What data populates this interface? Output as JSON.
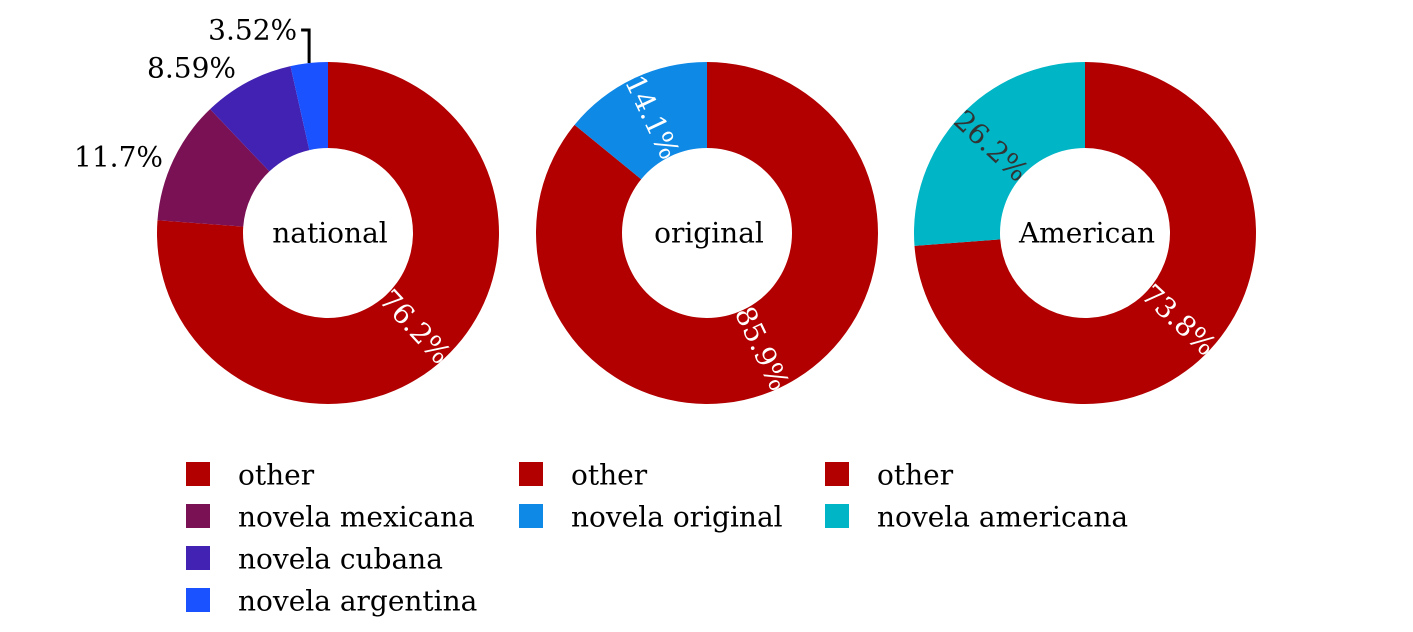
{
  "chart_data": [
    {
      "type": "pie",
      "center_label": "national",
      "categories": [
        "other",
        "novela mexicana",
        "novela cubana",
        "novela argentina"
      ],
      "values": [
        76.2,
        11.7,
        8.59,
        3.52
      ],
      "value_labels": [
        "76.2%",
        "11.7%",
        "8.59%",
        "3.52%"
      ],
      "colors": [
        "#b20000",
        "#7a1155",
        "#4222b2",
        "#1a52ff"
      ],
      "label_colors": [
        "#ffffff",
        "#000000",
        "#000000",
        "#000000"
      ],
      "label_outside": [
        false,
        true,
        true,
        true
      ]
    },
    {
      "type": "pie",
      "center_label": "original",
      "categories": [
        "other",
        "novela original"
      ],
      "values": [
        85.9,
        14.1
      ],
      "value_labels": [
        "85.9%",
        "14.1%"
      ],
      "colors": [
        "#b20000",
        "#0f89e6"
      ],
      "label_colors": [
        "#ffffff",
        "#ffffff"
      ],
      "label_outside": [
        false,
        false
      ]
    },
    {
      "type": "pie",
      "center_label": "American",
      "categories": [
        "other",
        "novela americana"
      ],
      "values": [
        73.8,
        26.2
      ],
      "value_labels": [
        "73.8%",
        "26.2%"
      ],
      "colors": [
        "#b20000",
        "#00b5c5"
      ],
      "label_colors": [
        "#ffffff",
        "#333333"
      ],
      "label_outside": [
        false,
        false
      ]
    }
  ]
}
